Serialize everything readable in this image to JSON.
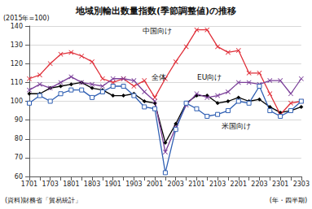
{
  "chart_data": {
    "type": "line",
    "title": "地域別輸出数量指数(季節調整値)の推移",
    "y_label": "(2015年=100)",
    "x_label": "(年・四半期)",
    "source": "(資料)財務省「貿易統計」",
    "categories": [
      "1701",
      null,
      "1703",
      null,
      "1801",
      null,
      "1803",
      null,
      "1901",
      null,
      "1903",
      null,
      "2001",
      null,
      "2003",
      null,
      "2101",
      null,
      "2103",
      null,
      "2201",
      null,
      "2203",
      null,
      "2301",
      null,
      "2303"
    ],
    "series": [
      {
        "name": "全体",
        "color": "#000000",
        "marker": "diamond",
        "values": [
          104,
          104,
          107,
          108,
          109,
          110,
          107,
          106,
          103,
          103,
          104,
          100,
          99,
          78,
          88,
          99,
          103,
          103,
          99,
          100,
          102,
          100,
          101,
          97,
          94,
          95,
          97
        ]
      },
      {
        "name": "中国向け",
        "color": "#e0303a",
        "marker": "x",
        "values": [
          112,
          114,
          120,
          125,
          126,
          124,
          121,
          112,
          110,
          112,
          108,
          111,
          102,
          112,
          121,
          129,
          138,
          138,
          129,
          126,
          127,
          115,
          115,
          104,
          93,
          99,
          100
        ]
      },
      {
        "name": "EU向け",
        "color": "#7b3f99",
        "marker": "x",
        "values": [
          106,
          109,
          107,
          110,
          113,
          110,
          109,
          108,
          112,
          112,
          111,
          105,
          100,
          73,
          86,
          98,
          104,
          102,
          103,
          105,
          110,
          110,
          109,
          111,
          111,
          104,
          112
        ]
      },
      {
        "name": "米国向け",
        "color": "#2f5fb3",
        "marker": "square",
        "values": [
          99,
          103,
          100,
          104,
          106,
          106,
          102,
          105,
          108,
          108,
          103,
          97,
          96,
          62,
          85,
          99,
          96,
          92,
          93,
          95,
          100,
          99,
          108,
          95,
          92,
          95,
          100
        ]
      }
    ],
    "ylim": [
      60,
      140
    ],
    "yticks": [
      60,
      70,
      80,
      90,
      100,
      110,
      120,
      130,
      140
    ],
    "grid": true
  }
}
